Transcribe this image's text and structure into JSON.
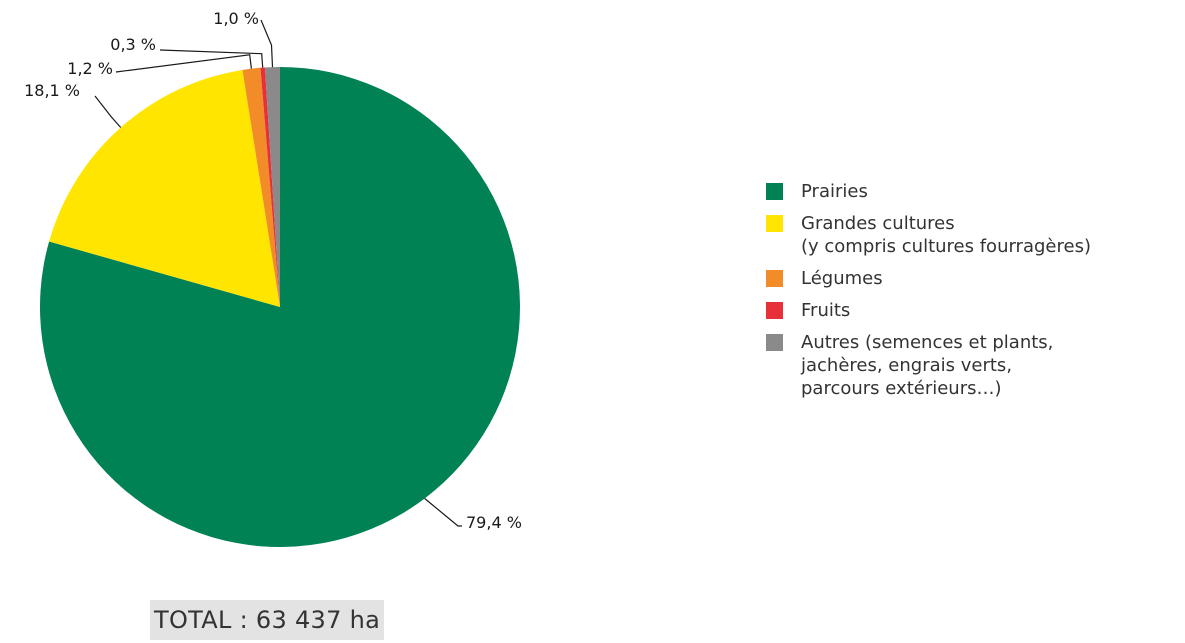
{
  "chart_data": {
    "type": "pie",
    "title": "",
    "slices": [
      {
        "label": "Prairies",
        "value": 79.4,
        "display": "79,4 %",
        "color": "#008254"
      },
      {
        "label": "Grandes cultures\n(y compris cultures fourragères)",
        "value": 18.1,
        "display": "18,1 %",
        "color": "#ffe500"
      },
      {
        "label": "Légumes",
        "value": 1.2,
        "display": "1,2 %",
        "color": "#f28c28"
      },
      {
        "label": "Fruits",
        "value": 0.3,
        "display": "0,3 %",
        "color": "#e8303a"
      },
      {
        "label": "Autres (semences et plants,\njachères, engrais verts,\nparcours extérieurs…)",
        "value": 1.0,
        "display": "1,0 %",
        "color": "#8a8a8a"
      }
    ],
    "legend_position": "right",
    "total": "TOTAL : 63 437 ha"
  }
}
